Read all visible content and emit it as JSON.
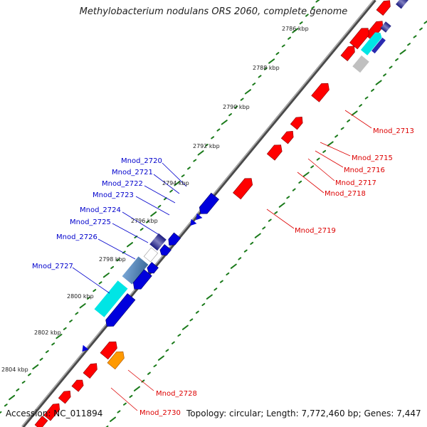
{
  "title": "Methylobacterium nodulans ORS 2060, complete genome",
  "footer": {
    "accession": "Accession: NC_011894",
    "summary": "Topology: circular; Length: 7,772,460 bp; Genes: 7,447"
  },
  "colors": {
    "forward_gene": "#ff0000",
    "reverse_gene": "#0000dd",
    "backbone": "#808080",
    "tick": "#1a7a1a",
    "label_forward": "#dd0000",
    "label_reverse": "#0000cc",
    "highlight_cyan": "#00e5e5",
    "highlight_orange": "#ff9900",
    "highlight_steel": "#5a8ab8",
    "highlight_gray": "#c0c0c0"
  },
  "kbp_ticks": [
    "2786 kbp",
    "2788 kbp",
    "2790 kbp",
    "2792 kbp",
    "2794 kbp",
    "2796 kbp",
    "2798 kbp",
    "2800 kbp",
    "2802 kbp",
    "2804 kbp"
  ],
  "reverse_labels": [
    "Mnod_2720",
    "Mnod_2721",
    "Mnod_2722",
    "Mnod_2723",
    "Mnod_2724",
    "Mnod_2725",
    "Mnod_2726",
    "Mnod_2727"
  ],
  "forward_labels": [
    "Mnod_2713",
    "Mnod_2715",
    "Mnod_2716",
    "Mnod_2717",
    "Mnod_2718",
    "Mnod_2719",
    "Mnod_2728",
    "Mnod_2730"
  ]
}
